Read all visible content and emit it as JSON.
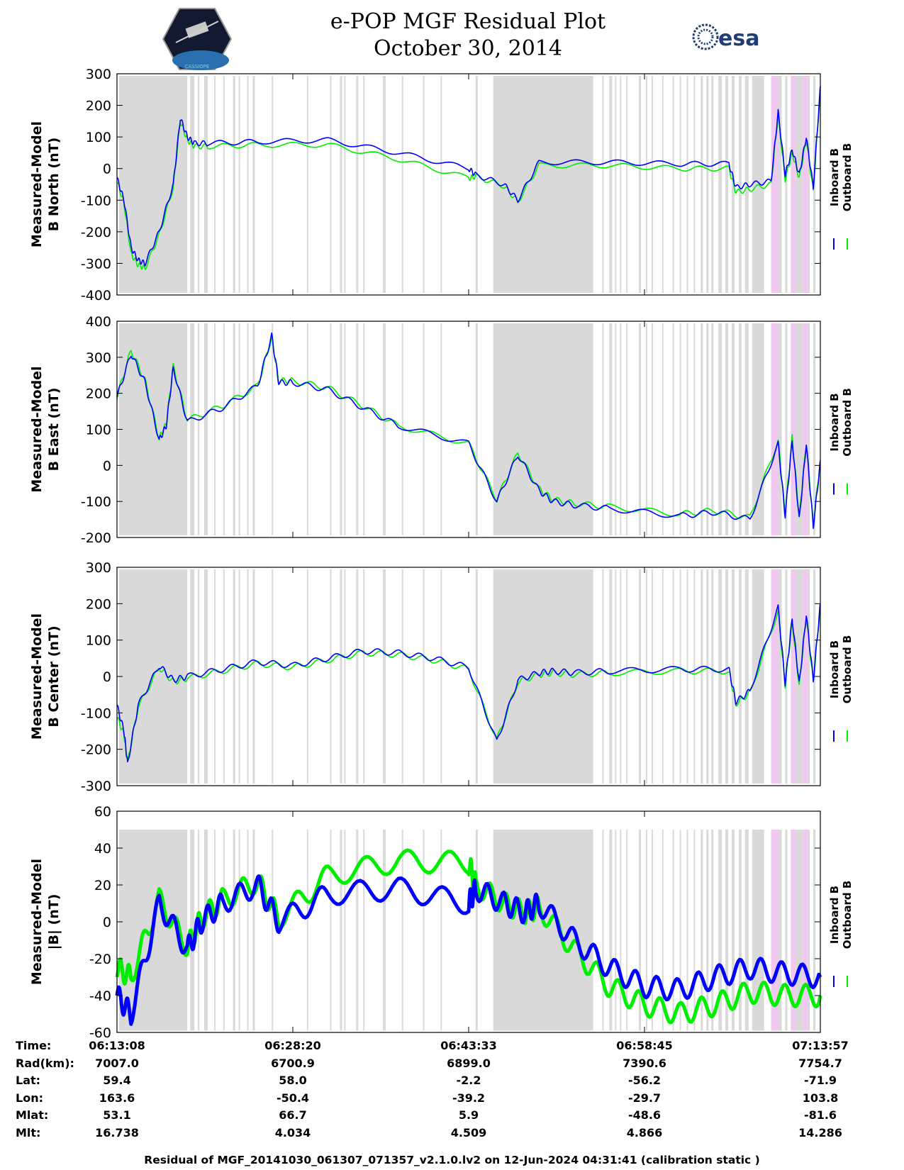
{
  "header": {
    "title_line1": "e-POP MGF Residual Plot",
    "title_line2": "October 30, 2014",
    "logo_left_label": "CASSIOPE",
    "logo_right_label": "esa"
  },
  "colors": {
    "inboard": "#0000ff",
    "outboard": "#00ee00",
    "shade_gray": "#d9d9d9",
    "shade_pink": "#f0c8f0"
  },
  "legend": {
    "inboard_label": "Inboard B",
    "outboard_label": "Outboard B"
  },
  "chart_data": [
    {
      "type": "line",
      "title": "B North",
      "ylabel_line1": "Measured-Model",
      "ylabel_line2": "B North (nT)",
      "ylim": [
        -400,
        300
      ],
      "yticks": [
        300,
        200,
        100,
        0,
        -100,
        -200,
        -300,
        -400
      ],
      "x": [
        0,
        0.01,
        0.02,
        0.03,
        0.04,
        0.06,
        0.08,
        0.09,
        0.1,
        0.11,
        0.13,
        0.2,
        0.3,
        0.4,
        0.5,
        0.51,
        0.55,
        0.57,
        0.6,
        0.7,
        0.8,
        0.87,
        0.88,
        0.9,
        0.93,
        0.94,
        0.95,
        0.96,
        0.97,
        0.98,
        0.99,
        1.0
      ],
      "series": [
        {
          "name": "Inboard B",
          "values": [
            -30,
            -100,
            -250,
            -290,
            -300,
            -200,
            -50,
            160,
            100,
            80,
            80,
            85,
            90,
            50,
            0,
            -20,
            -50,
            -100,
            20,
            20,
            15,
            15,
            -60,
            -50,
            -40,
            180,
            -20,
            60,
            -20,
            100,
            -60,
            260
          ]
        },
        {
          "name": "Outboard B",
          "values": [
            -40,
            -110,
            -270,
            -305,
            -315,
            -210,
            -60,
            150,
            90,
            70,
            70,
            75,
            75,
            30,
            -30,
            -25,
            -55,
            -105,
            10,
            10,
            0,
            0,
            -75,
            -65,
            -50,
            170,
            -35,
            50,
            -30,
            90,
            -70,
            250
          ]
        }
      ]
    },
    {
      "type": "line",
      "title": "B East",
      "ylabel_line1": "Measured-Model",
      "ylabel_line2": "B East (nT)",
      "ylim": [
        -200,
        400
      ],
      "yticks": [
        400,
        300,
        200,
        100,
        0,
        -100,
        -200
      ],
      "x": [
        0,
        0.02,
        0.04,
        0.06,
        0.07,
        0.08,
        0.1,
        0.15,
        0.2,
        0.22,
        0.23,
        0.25,
        0.3,
        0.35,
        0.4,
        0.5,
        0.54,
        0.57,
        0.6,
        0.62,
        0.65,
        0.7,
        0.8,
        0.85,
        0.9,
        0.94,
        0.95,
        0.96,
        0.97,
        0.98,
        0.99,
        1.0
      ],
      "series": [
        {
          "name": "Inboard B",
          "values": [
            190,
            310,
            230,
            70,
            110,
            270,
            120,
            160,
            220,
            360,
            230,
            230,
            210,
            160,
            110,
            60,
            -100,
            30,
            -70,
            -100,
            -110,
            -120,
            -140,
            -130,
            -150,
            60,
            -140,
            70,
            -150,
            60,
            -170,
            10
          ]
        },
        {
          "name": "Outboard B",
          "values": [
            190,
            320,
            235,
            75,
            115,
            275,
            125,
            165,
            220,
            355,
            235,
            235,
            215,
            165,
            110,
            60,
            -95,
            35,
            -65,
            -95,
            -105,
            -115,
            -135,
            -125,
            -145,
            70,
            -135,
            80,
            -145,
            65,
            -165,
            15
          ]
        }
      ]
    },
    {
      "type": "line",
      "title": "B Center",
      "ylabel_line1": "Measured-Model",
      "ylabel_line2": "B Center (nT)",
      "ylim": [
        -300,
        300
      ],
      "yticks": [
        300,
        200,
        100,
        0,
        -100,
        -200,
        -300
      ],
      "x": [
        0,
        0.01,
        0.015,
        0.03,
        0.06,
        0.08,
        0.1,
        0.15,
        0.2,
        0.25,
        0.3,
        0.35,
        0.4,
        0.45,
        0.5,
        0.54,
        0.57,
        0.6,
        0.62,
        0.65,
        0.7,
        0.8,
        0.87,
        0.88,
        0.9,
        0.94,
        0.95,
        0.96,
        0.97,
        0.98,
        0.99,
        1.0
      ],
      "series": [
        {
          "name": "Inboard B",
          "values": [
            -80,
            -150,
            -240,
            -80,
            30,
            -10,
            0,
            20,
            40,
            30,
            50,
            70,
            65,
            50,
            25,
            -180,
            -10,
            10,
            15,
            10,
            15,
            20,
            20,
            -70,
            -40,
            190,
            -20,
            160,
            -20,
            170,
            -10,
            200
          ]
        },
        {
          "name": "Outboard B",
          "values": [
            -110,
            -160,
            -235,
            -85,
            25,
            -15,
            -5,
            15,
            35,
            25,
            45,
            65,
            60,
            45,
            20,
            -175,
            -15,
            5,
            10,
            5,
            10,
            15,
            15,
            -75,
            -45,
            180,
            -25,
            150,
            -25,
            165,
            -15,
            195
          ]
        }
      ]
    },
    {
      "type": "line",
      "title": "|B|",
      "ylabel_line1": "Measured-Model",
      "ylabel_line2": "|B| (nT)",
      "ylim": [
        -60,
        60
      ],
      "yticks": [
        60,
        40,
        20,
        0,
        -20,
        -40,
        -60
      ],
      "x": [
        0,
        0.02,
        0.06,
        0.1,
        0.12,
        0.15,
        0.2,
        0.23,
        0.3,
        0.4,
        0.5,
        0.51,
        0.55,
        0.58,
        0.6,
        0.65,
        0.7,
        0.75,
        0.8,
        0.85,
        0.9,
        0.95,
        1.0
      ],
      "series": [
        {
          "name": "Inboard B",
          "values": [
            -40,
            -50,
            10,
            -15,
            0,
            10,
            20,
            0,
            15,
            18,
            10,
            18,
            10,
            5,
            10,
            -10,
            -25,
            -35,
            -37,
            -30,
            -25,
            -28,
            -30
          ]
        },
        {
          "name": "Outboard B",
          "values": [
            -25,
            -30,
            12,
            -14,
            2,
            12,
            22,
            2,
            25,
            33,
            32,
            20,
            10,
            5,
            8,
            -15,
            -35,
            -45,
            -50,
            -45,
            -38,
            -40,
            -40
          ]
        }
      ]
    }
  ],
  "info_table": {
    "rows": [
      {
        "label": "Time:",
        "values": [
          "06:13:08",
          "06:28:20",
          "06:43:33",
          "06:58:45",
          "07:13:57"
        ]
      },
      {
        "label": "Rad(km):",
        "values": [
          "7007.0",
          "6700.9",
          "6899.0",
          "7390.6",
          "7754.7"
        ]
      },
      {
        "label": "Lat:",
        "values": [
          "59.4",
          "58.0",
          "-2.2",
          "-56.2",
          "-71.9"
        ]
      },
      {
        "label": "Lon:",
        "values": [
          "163.6",
          "-50.4",
          "-39.2",
          "-29.7",
          "103.8"
        ]
      },
      {
        "label": "Mlat:",
        "values": [
          "53.1",
          "66.7",
          "5.9",
          "-48.6",
          "-81.6"
        ]
      },
      {
        "label": "Mlt:",
        "values": [
          "16.738",
          "4.034",
          "4.509",
          "4.866",
          "14.286"
        ]
      }
    ]
  },
  "footer": "Residual of MGF_20141030_061307_071357_v2.1.0.lv2 on 12-Jun-2024 04:31:41 (calibration static )"
}
